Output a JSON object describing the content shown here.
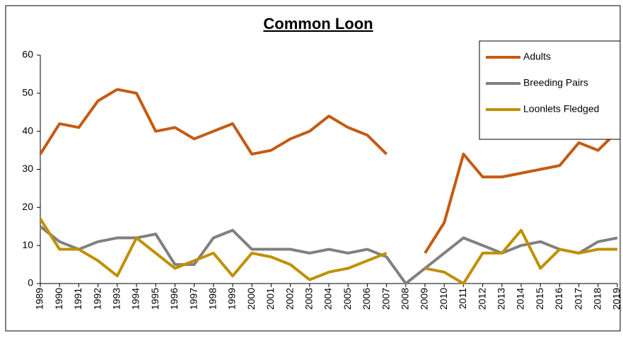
{
  "chart_data": {
    "type": "line",
    "title": "Common Loon",
    "categories": [
      "1989",
      "1990",
      "1991",
      "1992",
      "1993",
      "1994",
      "1995",
      "1996",
      "1997",
      "1998",
      "1999",
      "2000",
      "2001",
      "2002",
      "2003",
      "2004",
      "2005",
      "2006",
      "2007",
      "2008",
      "2009",
      "2010",
      "2011",
      "2012",
      "2013",
      "2014",
      "2015",
      "2016",
      "2017",
      "2018",
      "2019"
    ],
    "series": [
      {
        "name": "Adults",
        "color": "#c55a11",
        "values": [
          34,
          42,
          41,
          48,
          51,
          50,
          40,
          41,
          38,
          40,
          42,
          34,
          35,
          38,
          40,
          44,
          41,
          39,
          34,
          null,
          8,
          16,
          34,
          28,
          28,
          29,
          30,
          31,
          37,
          35,
          40
        ]
      },
      {
        "name": "Breeding Pairs",
        "color": "#808080",
        "values": [
          15,
          11,
          9,
          11,
          12,
          12,
          13,
          5,
          5,
          12,
          14,
          9,
          9,
          9,
          8,
          9,
          8,
          9,
          7,
          0,
          4,
          8,
          12,
          10,
          8,
          10,
          11,
          9,
          8,
          11,
          12
        ]
      },
      {
        "name": "Loonlets Fledged",
        "color": "#bf9000",
        "values": [
          17,
          9,
          9,
          6,
          2,
          12,
          8,
          4,
          6,
          8,
          2,
          8,
          7,
          5,
          1,
          3,
          4,
          6,
          8,
          null,
          4,
          3,
          0,
          8,
          8,
          14,
          4,
          9,
          8,
          9,
          9
        ]
      }
    ],
    "ylim": [
      0,
      60
    ],
    "yticks": [
      0,
      10,
      20,
      30,
      40,
      50,
      60
    ],
    "grid": false,
    "legend": "top-right"
  }
}
